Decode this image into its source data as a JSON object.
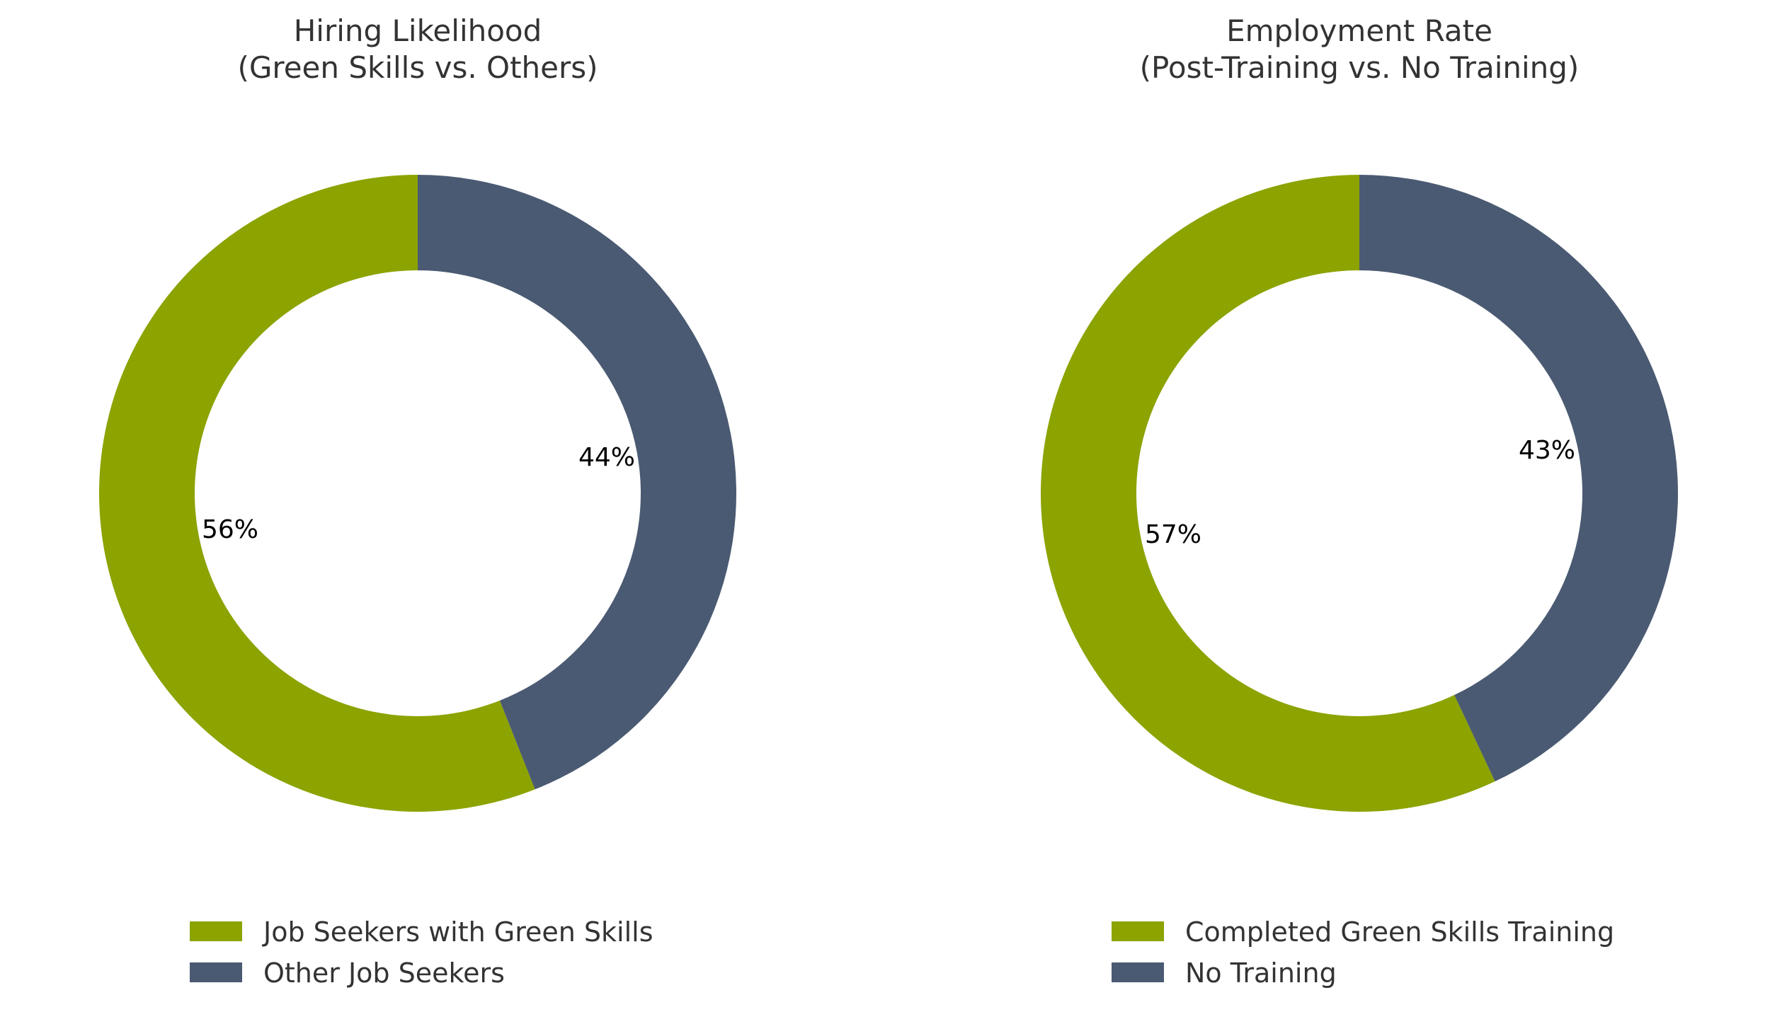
{
  "colors": {
    "green": "#8ca300",
    "slate": "#4a5a72"
  },
  "chart_data": [
    {
      "type": "pie",
      "title": [
        "Hiring Likelihood",
        "(Green Skills vs. Others)"
      ],
      "labels": [
        "Job Seekers with Green Skills",
        "Other Job Seekers"
      ],
      "values": [
        56,
        44
      ],
      "display": [
        "56%",
        "44%"
      ]
    },
    {
      "type": "pie",
      "title": [
        "Employment Rate",
        "(Post-Training vs. No Training)"
      ],
      "labels": [
        "Completed Green Skills Training",
        "No Training"
      ],
      "values": [
        57,
        43
      ],
      "display": [
        "57%",
        "43%"
      ]
    }
  ]
}
